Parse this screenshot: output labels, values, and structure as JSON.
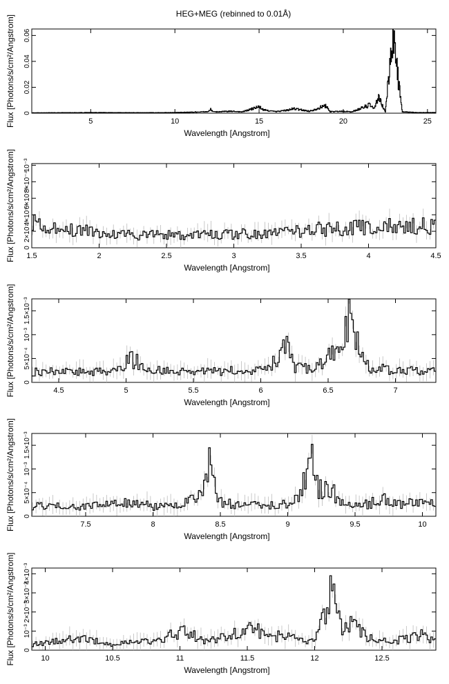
{
  "title": "HEG+MEG (rebinned to 0.01Å)",
  "chart_data": [
    {
      "type": "line",
      "xlabel": "Wavelength [Angstrom]",
      "ylabel": "Flux [Photons/s/cm²/Angstrom]",
      "xlim": [
        1.5,
        25.5
      ],
      "ylim": [
        0,
        0.065
      ],
      "xticks": [
        5,
        10,
        15,
        20,
        25
      ],
      "xtick_labels": [
        "5",
        "10",
        "15",
        "20",
        "25"
      ],
      "yticks": [
        0,
        0.02,
        0.04,
        0.06
      ],
      "ytick_labels": [
        "0",
        "0.02",
        "0.04",
        "0.06"
      ],
      "grid": false,
      "series": [
        {
          "x": [
            1.5,
            5.0,
            8.0,
            10.0,
            11.0,
            12.0,
            12.13,
            12.3,
            13.45,
            14.0,
            15.01,
            15.26,
            16.0,
            16.78,
            17.05,
            18.0,
            18.97,
            19.2,
            20.0,
            20.5,
            21.6,
            21.8,
            22.1,
            22.5,
            22.95,
            23.5,
            24.5,
            25.5
          ],
          "y": [
            0.0003,
            0.0005,
            0.0004,
            0.0005,
            0.0008,
            0.0012,
            0.003,
            0.001,
            0.0015,
            0.001,
            0.005,
            0.0025,
            0.0012,
            0.0025,
            0.0035,
            0.0015,
            0.006,
            0.0012,
            0.0015,
            0.001,
            0.0065,
            0.003,
            0.012,
            0.001,
            0.061,
            0.001,
            0.0005,
            0.0005
          ]
        }
      ]
    },
    {
      "type": "line",
      "xlabel": "Wavelength [Angstrom]",
      "ylabel": "Flux [Photons/s/cm²/Angstrom]",
      "xlim": [
        1.5,
        4.5
      ],
      "ylim": [
        0,
        0.00102
      ],
      "xticks": [
        1.5,
        2,
        2.5,
        3,
        3.5,
        4,
        4.5
      ],
      "xtick_labels": [
        "1.5",
        "2",
        "2.5",
        "3",
        "3.5",
        "4",
        "4.5"
      ],
      "yticks": [
        0,
        0.0002,
        0.0004,
        0.0006,
        0.0008,
        0.001
      ],
      "ytick_labels": [
        "0",
        "2×10⁻⁴",
        "4×10⁻⁴",
        "6×10⁻⁴",
        "8×10⁻⁴",
        "10⁻³"
      ],
      "grid": false,
      "series": [
        {
          "x": [
            1.5,
            1.6,
            1.7,
            1.8,
            1.9,
            2.0,
            2.2,
            2.4,
            2.6,
            2.8,
            3.0,
            3.2,
            3.4,
            3.6,
            3.8,
            4.0,
            4.2,
            4.5
          ],
          "y": [
            0.00035,
            0.0003,
            0.00025,
            0.00022,
            0.0002,
            0.00018,
            0.00016,
            0.00015,
            0.00015,
            0.00016,
            0.00017,
            0.00018,
            0.0002,
            0.00022,
            0.00024,
            0.00025,
            0.00026,
            0.00026
          ]
        }
      ]
    },
    {
      "type": "line",
      "xlabel": "Wavelength [Angstrom]",
      "ylabel": "Flux [Photons/s/cm²/Angstrom]",
      "xlim": [
        4.3,
        7.3
      ],
      "ylim": [
        0,
        0.00175
      ],
      "xticks": [
        4.5,
        5,
        5.5,
        6,
        6.5,
        7
      ],
      "xtick_labels": [
        "4.5",
        "5",
        "5.5",
        "6",
        "6.5",
        "7"
      ],
      "yticks": [
        0,
        0.0005,
        0.001,
        0.0015
      ],
      "ytick_labels": [
        "0",
        "5×10⁻⁴",
        "10⁻³",
        "1.5×10⁻³"
      ],
      "grid": false,
      "series": [
        {
          "x": [
            4.3,
            4.5,
            4.7,
            4.9,
            5.04,
            5.1,
            5.2,
            5.4,
            5.6,
            5.8,
            6.0,
            6.12,
            6.18,
            6.25,
            6.4,
            6.6,
            6.67,
            6.7,
            6.74,
            6.8,
            7.0,
            7.3
          ],
          "y": [
            0.00022,
            0.00022,
            0.00022,
            0.00025,
            0.0005,
            0.0004,
            0.00025,
            0.00022,
            0.00022,
            0.00025,
            0.00025,
            0.00045,
            0.0008,
            0.0003,
            0.0003,
            0.0007,
            0.00145,
            0.0009,
            0.0007,
            0.0003,
            0.00025,
            0.00022
          ]
        }
      ]
    },
    {
      "type": "line",
      "xlabel": "Wavelength [Angstrom]",
      "ylabel": "Flux [Photons/s/cm²/Angstrom]",
      "xlim": [
        7.1,
        10.1
      ],
      "ylim": [
        0,
        0.00175
      ],
      "xticks": [
        7.5,
        8,
        8.5,
        9,
        9.5,
        10
      ],
      "xtick_labels": [
        "7.5",
        "8",
        "8.5",
        "9",
        "9.5",
        "10"
      ],
      "yticks": [
        0,
        0.0005,
        0.001,
        0.0015
      ],
      "ytick_labels": [
        "0",
        "5×10⁻⁴",
        "10⁻³",
        "1.5×10⁻³"
      ],
      "grid": false,
      "series": [
        {
          "x": [
            7.1,
            7.5,
            7.85,
            8.0,
            8.2,
            8.35,
            8.42,
            8.5,
            8.7,
            9.0,
            9.1,
            9.17,
            9.23,
            9.31,
            9.4,
            9.6,
            9.72,
            9.8,
            10.0,
            10.1
          ],
          "y": [
            0.00022,
            0.0002,
            0.0003,
            0.0002,
            0.00022,
            0.0004,
            0.00105,
            0.0003,
            0.00022,
            0.00025,
            0.00045,
            0.00125,
            0.0006,
            0.0006,
            0.0003,
            0.00025,
            0.0004,
            0.00025,
            0.0003,
            0.00025
          ]
        }
      ]
    },
    {
      "type": "line",
      "xlabel": "Wavelength [Angstrom]",
      "ylabel": "Flux [Photons/s/cm²/Angstrom]",
      "xlim": [
        9.9,
        12.9
      ],
      "ylim": [
        0,
        0.0043
      ],
      "xticks": [
        10,
        10.5,
        11,
        11.5,
        12,
        12.5
      ],
      "xtick_labels": [
        "10",
        "10.5",
        "11",
        "11.5",
        "12",
        "12.5"
      ],
      "yticks": [
        0,
        0.001,
        0.002,
        0.003,
        0.004
      ],
      "ytick_labels": [
        "0",
        "10⁻³",
        "2×10⁻³",
        "3×10⁻³",
        "4×10⁻³"
      ],
      "grid": false,
      "series": [
        {
          "x": [
            9.9,
            10.25,
            10.5,
            10.65,
            10.8,
            11.02,
            11.2,
            11.55,
            11.7,
            11.77,
            11.9,
            12.0,
            12.1,
            12.13,
            12.2,
            12.28,
            12.4,
            12.6,
            12.8,
            12.9
          ],
          "y": [
            0.0003,
            0.0006,
            0.0003,
            0.0005,
            0.0004,
            0.001,
            0.0005,
            0.0011,
            0.0006,
            0.0009,
            0.0005,
            0.0005,
            0.0022,
            0.0035,
            0.0012,
            0.0014,
            0.0006,
            0.0005,
            0.0008,
            0.0004
          ]
        }
      ]
    }
  ]
}
